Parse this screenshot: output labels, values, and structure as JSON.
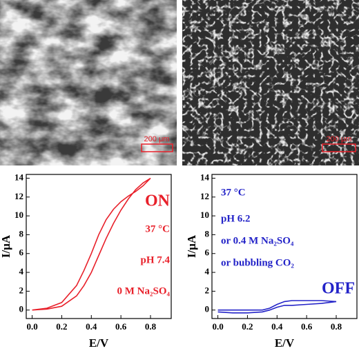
{
  "images": [
    {
      "scale_bar": "200 μm"
    },
    {
      "scale_bar": "200 μm"
    }
  ],
  "chart_data": [
    {
      "type": "line",
      "xlabel": "E/V",
      "ylabel": "I/μA",
      "annotations": [
        "ON",
        "37 °C",
        "pH 7.4",
        "0 M Na₂SO₄"
      ],
      "xlim": [
        -0.04,
        0.94
      ],
      "ylim": [
        -0.9,
        14.4
      ],
      "xticks": [
        {
          "value": 0,
          "label": "0.0"
        },
        0.2,
        0.4,
        0.6,
        0.8
      ],
      "yticks": [
        0,
        2,
        4,
        6,
        8,
        10,
        12,
        14
      ],
      "series": [
        {
          "color": "#e8202a",
          "x": [
            0.0,
            0.1,
            0.2,
            0.3,
            0.35,
            0.4,
            0.45,
            0.5,
            0.55,
            0.6,
            0.65,
            0.7,
            0.75,
            0.8,
            0.75,
            0.7,
            0.65,
            0.6,
            0.55,
            0.5,
            0.45,
            0.4,
            0.35,
            0.3,
            0.2,
            0.1,
            0.0
          ],
          "values": [
            0.0,
            0.1,
            0.4,
            1.5,
            2.6,
            4.0,
            5.8,
            7.6,
            9.2,
            10.6,
            11.8,
            12.8,
            13.5,
            14.0,
            13.2,
            12.6,
            12.1,
            11.5,
            10.7,
            9.6,
            8.0,
            6.0,
            4.2,
            2.6,
            0.8,
            0.2,
            0.0
          ]
        }
      ]
    },
    {
      "type": "line",
      "xlabel": "E/V",
      "ylabel": "I/μA",
      "annotations": [
        "37 °C",
        "pH 6.2",
        "or 0.4 M Na₂SO₄",
        "or bubbling CO₂",
        "OFF"
      ],
      "xlim": [
        -0.04,
        0.94
      ],
      "ylim": [
        -0.9,
        14.4
      ],
      "xticks": [
        {
          "value": 0,
          "label": "0.0"
        },
        0.2,
        0.4,
        0.6,
        0.8
      ],
      "yticks": [
        0,
        2,
        4,
        6,
        8,
        10,
        12,
        14
      ],
      "series": [
        {
          "color": "#2323c8",
          "x": [
            0.0,
            0.1,
            0.2,
            0.3,
            0.35,
            0.4,
            0.45,
            0.5,
            0.6,
            0.7,
            0.8,
            0.7,
            0.6,
            0.5,
            0.45,
            0.4,
            0.35,
            0.3,
            0.2,
            0.1,
            0.0
          ],
          "values": [
            -0.2,
            -0.3,
            -0.3,
            -0.2,
            0.0,
            0.3,
            0.5,
            0.5,
            0.6,
            0.7,
            0.9,
            1.0,
            1.0,
            1.0,
            0.9,
            0.6,
            0.2,
            0.0,
            0.0,
            0.0,
            0.0
          ]
        }
      ]
    }
  ]
}
